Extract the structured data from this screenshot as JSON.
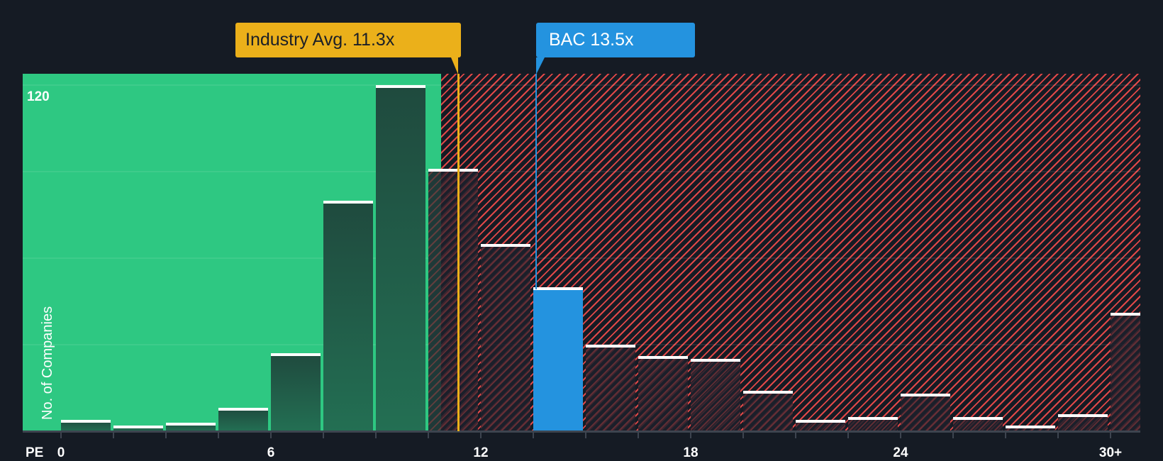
{
  "chart_data": {
    "type": "bar",
    "title": "",
    "xlabel": "PE",
    "ylabel": "No. of Companies",
    "ylim": [
      0,
      120
    ],
    "y_ticks_shown": [
      120
    ],
    "gridlines_at": [
      30,
      60,
      90,
      120
    ],
    "x_tick_labels": [
      "0",
      "6",
      "12",
      "18",
      "24",
      "30+"
    ],
    "bin_width": 1.5,
    "categories": [
      "0-1.5",
      "1.5-3",
      "3-4.5",
      "4.5-6",
      "6-7.5",
      "7.5-9",
      "9-10.5",
      "10.5-12",
      "12-13.5",
      "13.5-15",
      "15-16.5",
      "16.5-18",
      "18-19.5",
      "19.5-21",
      "21-22.5",
      "22.5-24",
      "24-25.5",
      "25.5-27",
      "27-28.5",
      "28.5-30",
      "30+"
    ],
    "values": [
      4,
      2,
      3,
      8,
      27,
      80,
      120,
      91,
      65,
      50,
      30,
      26,
      25,
      14,
      4,
      5,
      13,
      5,
      2,
      6,
      41
    ],
    "highlight_index": 9,
    "annotations": [
      {
        "label": "Industry Avg. 11.3x",
        "x": 11.3,
        "color": "#ebb01a"
      },
      {
        "label": "BAC 13.5x",
        "x": 13.5,
        "color": "#2493df"
      }
    ],
    "zones": [
      {
        "name": "undervalued",
        "from": 0,
        "to": 10.7,
        "color": "#2ec882"
      },
      {
        "name": "overvalued",
        "from": 10.7,
        "to": 31.5,
        "color": "#e04848",
        "pattern": "diagonal-hatch"
      }
    ],
    "legend": "none",
    "grid": true
  },
  "labels": {
    "y_axis_title": "No. of Companies",
    "y_max": "120",
    "x_axis_title": "PE",
    "industry_callout": "Industry Avg. 11.3x",
    "company_callout": "BAC 13.5x"
  },
  "colors": {
    "background": "#151b24",
    "green_zone": "#2ec882",
    "red_hatch": "#e04848",
    "industry": "#ebb01a",
    "company": "#2493df"
  }
}
